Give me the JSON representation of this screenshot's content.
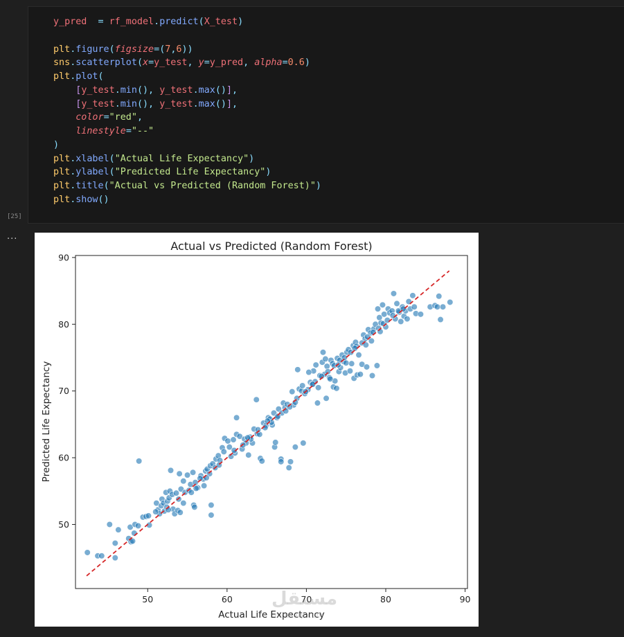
{
  "cell": {
    "execution_count": "[25]",
    "output_menu": "...",
    "lines": [
      [
        [
          "t-var",
          "y_pred"
        ],
        [
          "",
          "  "
        ],
        [
          "t-op",
          "="
        ],
        [
          "",
          " "
        ],
        [
          "t-var",
          "rf_model"
        ],
        [
          "t-punc",
          "."
        ],
        [
          "t-fn",
          "predict"
        ],
        [
          "t-punc",
          "("
        ],
        [
          "t-var",
          "X_test"
        ],
        [
          "t-punc",
          ")"
        ]
      ],
      [],
      [
        [
          "t-mod",
          "plt"
        ],
        [
          "t-punc",
          "."
        ],
        [
          "t-fn",
          "figure"
        ],
        [
          "t-punc",
          "("
        ],
        [
          "t-param",
          "figsize"
        ],
        [
          "t-op",
          "="
        ],
        [
          "t-punc",
          "("
        ],
        [
          "t-num",
          "7"
        ],
        [
          "t-punc",
          ","
        ],
        [
          "t-num",
          "6"
        ],
        [
          "t-punc",
          "))"
        ]
      ],
      [
        [
          "t-mod",
          "sns"
        ],
        [
          "t-punc",
          "."
        ],
        [
          "t-fn",
          "scatterplot"
        ],
        [
          "t-punc",
          "("
        ],
        [
          "t-param",
          "x"
        ],
        [
          "t-op",
          "="
        ],
        [
          "t-var",
          "y_test"
        ],
        [
          "t-punc",
          ","
        ],
        [
          "",
          " "
        ],
        [
          "t-param",
          "y"
        ],
        [
          "t-op",
          "="
        ],
        [
          "t-var",
          "y_pred"
        ],
        [
          "t-punc",
          ","
        ],
        [
          "",
          " "
        ],
        [
          "t-param",
          "alpha"
        ],
        [
          "t-op",
          "="
        ],
        [
          "t-num",
          "0.6"
        ],
        [
          "t-punc",
          ")"
        ]
      ],
      [
        [
          "t-mod",
          "plt"
        ],
        [
          "t-punc",
          "."
        ],
        [
          "t-fn",
          "plot"
        ],
        [
          "t-punc",
          "("
        ]
      ],
      [
        [
          "",
          "    "
        ],
        [
          "t-par",
          "["
        ],
        [
          "t-var",
          "y_test"
        ],
        [
          "t-punc",
          "."
        ],
        [
          "t-fn",
          "min"
        ],
        [
          "t-punc",
          "(),"
        ],
        [
          "",
          " "
        ],
        [
          "t-var",
          "y_test"
        ],
        [
          "t-punc",
          "."
        ],
        [
          "t-fn",
          "max"
        ],
        [
          "t-punc",
          "()"
        ],
        [
          "t-par",
          "]"
        ],
        [
          "t-punc",
          ","
        ]
      ],
      [
        [
          "",
          "    "
        ],
        [
          "t-par",
          "["
        ],
        [
          "t-var",
          "y_test"
        ],
        [
          "t-punc",
          "."
        ],
        [
          "t-fn",
          "min"
        ],
        [
          "t-punc",
          "(),"
        ],
        [
          "",
          " "
        ],
        [
          "t-var",
          "y_test"
        ],
        [
          "t-punc",
          "."
        ],
        [
          "t-fn",
          "max"
        ],
        [
          "t-punc",
          "()"
        ],
        [
          "t-par",
          "]"
        ],
        [
          "t-punc",
          ","
        ]
      ],
      [
        [
          "",
          "    "
        ],
        [
          "t-param",
          "color"
        ],
        [
          "t-op",
          "="
        ],
        [
          "t-str",
          "\"red\""
        ],
        [
          "t-punc",
          ","
        ]
      ],
      [
        [
          "",
          "    "
        ],
        [
          "t-param",
          "linestyle"
        ],
        [
          "t-op",
          "="
        ],
        [
          "t-str",
          "\"--\""
        ]
      ],
      [
        [
          "t-punc",
          ")"
        ]
      ],
      [
        [
          "t-mod",
          "plt"
        ],
        [
          "t-punc",
          "."
        ],
        [
          "t-fn",
          "xlabel"
        ],
        [
          "t-punc",
          "("
        ],
        [
          "t-str",
          "\"Actual Life Expectancy\""
        ],
        [
          "t-punc",
          ")"
        ]
      ],
      [
        [
          "t-mod",
          "plt"
        ],
        [
          "t-punc",
          "."
        ],
        [
          "t-fn",
          "ylabel"
        ],
        [
          "t-punc",
          "("
        ],
        [
          "t-str",
          "\"Predicted Life Expectancy\""
        ],
        [
          "t-punc",
          ")"
        ]
      ],
      [
        [
          "t-mod",
          "plt"
        ],
        [
          "t-punc",
          "."
        ],
        [
          "t-fn",
          "title"
        ],
        [
          "t-punc",
          "("
        ],
        [
          "t-str",
          "\"Actual vs Predicted (Random Forest)\""
        ],
        [
          "t-punc",
          ")"
        ]
      ],
      [
        [
          "t-mod",
          "plt"
        ],
        [
          "t-punc",
          "."
        ],
        [
          "t-fn",
          "show"
        ],
        [
          "t-punc",
          "()"
        ]
      ]
    ]
  },
  "watermark": {
    "brand": "مستقل",
    "url": "mostaql.com"
  },
  "colors": {
    "point": "#1f77b4",
    "ref_line": "#d62728",
    "editor_bg": "#181818",
    "page_bg": "#1f1f1f"
  },
  "chart_data": {
    "type": "scatter",
    "title": "Actual vs Predicted (Random Forest)",
    "xlabel": "Actual Life Expectancy",
    "ylabel": "Predicted Life Expectancy",
    "xlim": [
      40.9,
      90.3
    ],
    "ylim": [
      40.4,
      90.3
    ],
    "xticks": [
      50,
      60,
      70,
      80,
      90
    ],
    "yticks": [
      50,
      60,
      70,
      80,
      90
    ],
    "grid": false,
    "point_alpha": 0.6,
    "reference_line": {
      "x": [
        42.3,
        88.0
      ],
      "y": [
        42.3,
        88.0
      ],
      "color": "red",
      "linestyle": "--"
    },
    "points": [
      [
        42.4,
        45.8
      ],
      [
        43.7,
        45.3
      ],
      [
        44.2,
        45.3
      ],
      [
        45.2,
        50.0
      ],
      [
        45.9,
        45.0
      ],
      [
        45.9,
        47.2
      ],
      [
        46.3,
        49.2
      ],
      [
        47.6,
        47.9
      ],
      [
        47.8,
        49.6
      ],
      [
        47.9,
        47.4
      ],
      [
        48.1,
        47.5
      ],
      [
        48.3,
        48.7
      ],
      [
        48.4,
        50.0
      ],
      [
        48.8,
        49.8
      ],
      [
        48.9,
        59.5
      ],
      [
        49.4,
        51.1
      ],
      [
        49.8,
        51.2
      ],
      [
        50.1,
        51.3
      ],
      [
        51.1,
        53.2
      ],
      [
        51.3,
        52.2
      ],
      [
        51.5,
        51.6
      ],
      [
        51.7,
        52.8
      ],
      [
        51.8,
        53.8
      ],
      [
        52.0,
        53.2
      ],
      [
        52.1,
        52.0
      ],
      [
        52.3,
        54.8
      ],
      [
        52.4,
        52.6
      ],
      [
        52.5,
        53.5
      ],
      [
        52.7,
        54.0
      ],
      [
        52.8,
        55.0
      ],
      [
        52.9,
        58.1
      ],
      [
        53.1,
        54.5
      ],
      [
        53.2,
        52.3
      ],
      [
        53.4,
        51.6
      ],
      [
        53.6,
        54.7
      ],
      [
        53.8,
        52.1
      ],
      [
        54.0,
        57.6
      ],
      [
        54.1,
        51.8
      ],
      [
        54.2,
        55.3
      ],
      [
        54.5,
        56.5
      ],
      [
        54.7,
        54.8
      ],
      [
        55.0,
        57.4
      ],
      [
        55.2,
        55.1
      ],
      [
        55.4,
        56.0
      ],
      [
        55.7,
        57.8
      ],
      [
        55.8,
        52.9
      ],
      [
        55.9,
        52.6
      ],
      [
        56.0,
        56.3
      ],
      [
        56.3,
        55.5
      ],
      [
        56.7,
        57.3
      ],
      [
        57.0,
        56.8
      ],
      [
        57.1,
        55.8
      ],
      [
        57.3,
        58.0
      ],
      [
        57.5,
        58.3
      ],
      [
        57.8,
        57.6
      ],
      [
        57.9,
        58.8
      ],
      [
        58.0,
        51.4
      ],
      [
        58.0,
        52.9
      ],
      [
        58.2,
        59.1
      ],
      [
        58.5,
        58.5
      ],
      [
        58.6,
        59.8
      ],
      [
        58.9,
        60.3
      ],
      [
        59.1,
        59.6
      ],
      [
        59.4,
        61.5
      ],
      [
        59.6,
        60.9
      ],
      [
        59.7,
        62.9
      ],
      [
        60.1,
        62.5
      ],
      [
        60.3,
        61.6
      ],
      [
        60.5,
        60.2
      ],
      [
        60.8,
        62.7
      ],
      [
        61.2,
        66.0
      ],
      [
        61.2,
        63.5
      ],
      [
        61.6,
        63.2
      ],
      [
        61.9,
        61.3
      ],
      [
        62.2,
        62.8
      ],
      [
        62.4,
        62.2
      ],
      [
        62.7,
        60.4
      ],
      [
        62.9,
        63.1
      ],
      [
        63.2,
        62.2
      ],
      [
        63.4,
        64.3
      ],
      [
        63.7,
        68.7
      ],
      [
        63.8,
        63.6
      ],
      [
        64.1,
        63.5
      ],
      [
        64.2,
        59.9
      ],
      [
        64.4,
        59.5
      ],
      [
        64.6,
        65.2
      ],
      [
        64.9,
        64.8
      ],
      [
        65.2,
        66.0
      ],
      [
        65.4,
        65.8
      ],
      [
        65.7,
        64.9
      ],
      [
        65.9,
        66.7
      ],
      [
        66.0,
        61.6
      ],
      [
        66.1,
        62.3
      ],
      [
        66.3,
        66.0
      ],
      [
        66.5,
        67.3
      ],
      [
        66.8,
        59.8
      ],
      [
        66.8,
        59.4
      ],
      [
        67.1,
        68.2
      ],
      [
        67.3,
        67.5
      ],
      [
        67.6,
        68.0
      ],
      [
        67.8,
        58.5
      ],
      [
        68.0,
        59.4
      ],
      [
        68.2,
        69.9
      ],
      [
        68.4,
        67.9
      ],
      [
        68.6,
        61.6
      ],
      [
        68.9,
        73.2
      ],
      [
        69.1,
        70.3
      ],
      [
        69.4,
        70.0
      ],
      [
        69.6,
        62.2
      ],
      [
        69.8,
        69.6
      ],
      [
        70.2,
        70.2
      ],
      [
        70.5,
        71.3
      ],
      [
        70.7,
        71.0
      ],
      [
        70.9,
        73.0
      ],
      [
        71.1,
        71.4
      ],
      [
        71.4,
        68.2
      ],
      [
        71.5,
        70.5
      ],
      [
        71.7,
        72.3
      ],
      [
        72.0,
        74.3
      ],
      [
        72.1,
        75.8
      ],
      [
        72.3,
        72.5
      ],
      [
        72.5,
        68.9
      ],
      [
        72.6,
        73.7
      ],
      [
        72.9,
        72.0
      ],
      [
        73.1,
        74.6
      ],
      [
        73.3,
        74.1
      ],
      [
        73.4,
        70.6
      ],
      [
        73.6,
        71.5
      ],
      [
        73.8,
        70.4
      ],
      [
        73.9,
        74.9
      ],
      [
        74.1,
        72.9
      ],
      [
        74.3,
        73.5
      ],
      [
        74.5,
        75.4
      ],
      [
        74.7,
        74.4
      ],
      [
        74.9,
        72.7
      ],
      [
        75.1,
        75.8
      ],
      [
        75.3,
        76.2
      ],
      [
        75.5,
        73.0
      ],
      [
        75.7,
        74.1
      ],
      [
        75.9,
        76.8
      ],
      [
        76.0,
        71.9
      ],
      [
        76.2,
        77.3
      ],
      [
        76.4,
        72.4
      ],
      [
        76.6,
        75.4
      ],
      [
        76.8,
        72.5
      ],
      [
        77.0,
        74.0
      ],
      [
        77.2,
        78.4
      ],
      [
        77.4,
        77.8
      ],
      [
        77.6,
        73.6
      ],
      [
        77.8,
        79.2
      ],
      [
        78.1,
        78.7
      ],
      [
        78.3,
        72.3
      ],
      [
        78.5,
        79.3
      ],
      [
        78.7,
        80.0
      ],
      [
        78.9,
        73.8
      ],
      [
        79.0,
        82.3
      ],
      [
        79.2,
        81.0
      ],
      [
        79.4,
        80.2
      ],
      [
        79.6,
        82.9
      ],
      [
        79.8,
        81.5
      ],
      [
        80.0,
        79.6
      ],
      [
        80.3,
        82.3
      ],
      [
        80.5,
        81.7
      ],
      [
        80.8,
        82.0
      ],
      [
        81.0,
        84.6
      ],
      [
        81.2,
        80.8
      ],
      [
        81.4,
        83.1
      ],
      [
        81.7,
        81.8
      ],
      [
        81.9,
        80.4
      ],
      [
        82.1,
        82.6
      ],
      [
        82.3,
        81.2
      ],
      [
        82.5,
        82.0
      ],
      [
        82.7,
        80.8
      ],
      [
        82.9,
        83.4
      ],
      [
        83.1,
        82.3
      ],
      [
        83.4,
        84.3
      ],
      [
        83.6,
        82.6
      ],
      [
        83.8,
        81.6
      ],
      [
        84.4,
        81.5
      ],
      [
        85.6,
        82.6
      ],
      [
        86.2,
        82.8
      ],
      [
        86.5,
        82.6
      ],
      [
        86.7,
        84.2
      ],
      [
        86.9,
        80.7
      ],
      [
        87.2,
        82.6
      ],
      [
        88.1,
        83.3
      ],
      [
        50.2,
        49.9
      ],
      [
        54.5,
        53.2
      ],
      [
        56.1,
        55.4
      ],
      [
        59.0,
        58.9
      ],
      [
        61.0,
        60.7
      ],
      [
        62.0,
        61.9
      ],
      [
        63.0,
        62.8
      ],
      [
        64.8,
        64.5
      ],
      [
        65.6,
        65.3
      ],
      [
        66.9,
        66.7
      ],
      [
        67.9,
        67.6
      ],
      [
        68.8,
        68.9
      ],
      [
        69.9,
        69.9
      ],
      [
        70.8,
        71.0
      ],
      [
        71.9,
        72.2
      ],
      [
        72.7,
        72.9
      ],
      [
        73.5,
        73.8
      ],
      [
        74.2,
        74.6
      ],
      [
        74.8,
        75.0
      ],
      [
        75.6,
        75.8
      ],
      [
        76.3,
        76.7
      ],
      [
        77.0,
        77.2
      ],
      [
        77.7,
        78.1
      ],
      [
        78.4,
        78.8
      ],
      [
        79.1,
        79.4
      ],
      [
        79.7,
        80.1
      ],
      [
        80.2,
        80.6
      ],
      [
        80.9,
        81.3
      ],
      [
        81.6,
        82.0
      ],
      [
        82.2,
        82.3
      ],
      [
        70.3,
        72.8
      ],
      [
        71.2,
        73.9
      ],
      [
        72.4,
        74.8
      ],
      [
        73.0,
        71.8
      ],
      [
        74.0,
        73.9
      ],
      [
        75.0,
        74.2
      ],
      [
        76.1,
        76.4
      ],
      [
        77.5,
        76.9
      ],
      [
        78.2,
        77.5
      ],
      [
        79.3,
        78.9
      ],
      [
        69.5,
        70.8
      ],
      [
        68.6,
        68.3
      ],
      [
        67.4,
        67.0
      ],
      [
        66.4,
        66.2
      ],
      [
        65.1,
        65.5
      ],
      [
        63.9,
        64.2
      ],
      [
        62.6,
        63.0
      ],
      [
        60.9,
        61.1
      ],
      [
        57.4,
        57.0
      ],
      [
        56.6,
        56.9
      ],
      [
        55.5,
        54.8
      ],
      [
        53.9,
        53.8
      ],
      [
        52.6,
        52.2
      ],
      [
        51.0,
        51.9
      ]
    ]
  }
}
